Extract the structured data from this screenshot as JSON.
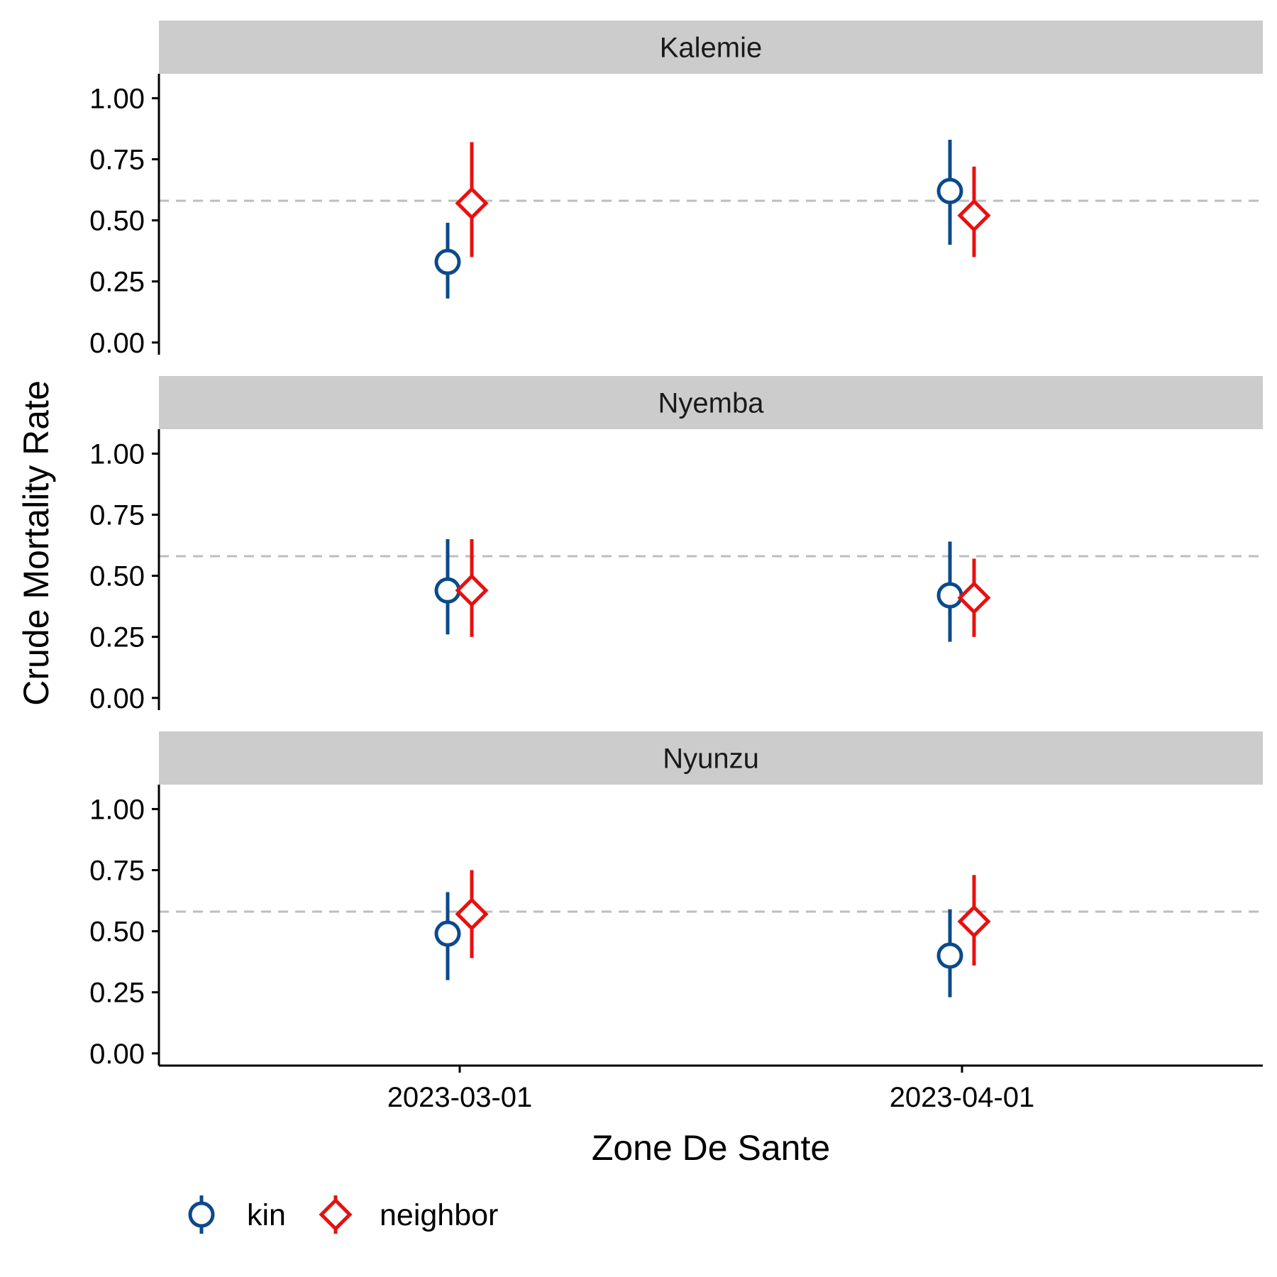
{
  "chart_data": {
    "type": "pointrange",
    "xlabel": "Zone De Sante",
    "ylabel": "Crude Mortality Rate",
    "x_categories": [
      "2023-03-01",
      "2023-04-01"
    ],
    "y_ticks": [
      "0.00",
      "0.25",
      "0.50",
      "0.75",
      "1.00"
    ],
    "y_tick_values": [
      0,
      0.25,
      0.5,
      0.75,
      1.0
    ],
    "ylim": [
      -0.05,
      1.1
    ],
    "reference_line": {
      "y": 0.58,
      "style": "dashed",
      "color": "#bebebe"
    },
    "series": [
      {
        "name": "kin",
        "shape": "circle",
        "color": "#0b4a8b"
      },
      {
        "name": "neighbor",
        "shape": "diamond",
        "color": "#e8100f"
      }
    ],
    "legend": {
      "position": "bottom-left"
    },
    "panels": [
      {
        "title": "Kalemie",
        "points": [
          {
            "series": "kin",
            "x": "2023-03-01",
            "y": 0.33,
            "lower": 0.18,
            "upper": 0.49
          },
          {
            "series": "neighbor",
            "x": "2023-03-01",
            "y": 0.57,
            "lower": 0.35,
            "upper": 0.82
          },
          {
            "series": "kin",
            "x": "2023-04-01",
            "y": 0.62,
            "lower": 0.4,
            "upper": 0.83
          },
          {
            "series": "neighbor",
            "x": "2023-04-01",
            "y": 0.52,
            "lower": 0.35,
            "upper": 0.72
          }
        ]
      },
      {
        "title": "Nyemba",
        "points": [
          {
            "series": "kin",
            "x": "2023-03-01",
            "y": 0.44,
            "lower": 0.26,
            "upper": 0.65
          },
          {
            "series": "neighbor",
            "x": "2023-03-01",
            "y": 0.44,
            "lower": 0.25,
            "upper": 0.65
          },
          {
            "series": "kin",
            "x": "2023-04-01",
            "y": 0.42,
            "lower": 0.23,
            "upper": 0.64
          },
          {
            "series": "neighbor",
            "x": "2023-04-01",
            "y": 0.41,
            "lower": 0.25,
            "upper": 0.57
          }
        ]
      },
      {
        "title": "Nyunzu",
        "points": [
          {
            "series": "kin",
            "x": "2023-03-01",
            "y": 0.49,
            "lower": 0.3,
            "upper": 0.66
          },
          {
            "series": "neighbor",
            "x": "2023-03-01",
            "y": 0.57,
            "lower": 0.39,
            "upper": 0.75
          },
          {
            "series": "kin",
            "x": "2023-04-01",
            "y": 0.4,
            "lower": 0.23,
            "upper": 0.59
          },
          {
            "series": "neighbor",
            "x": "2023-04-01",
            "y": 0.54,
            "lower": 0.36,
            "upper": 0.73
          }
        ]
      }
    ]
  }
}
